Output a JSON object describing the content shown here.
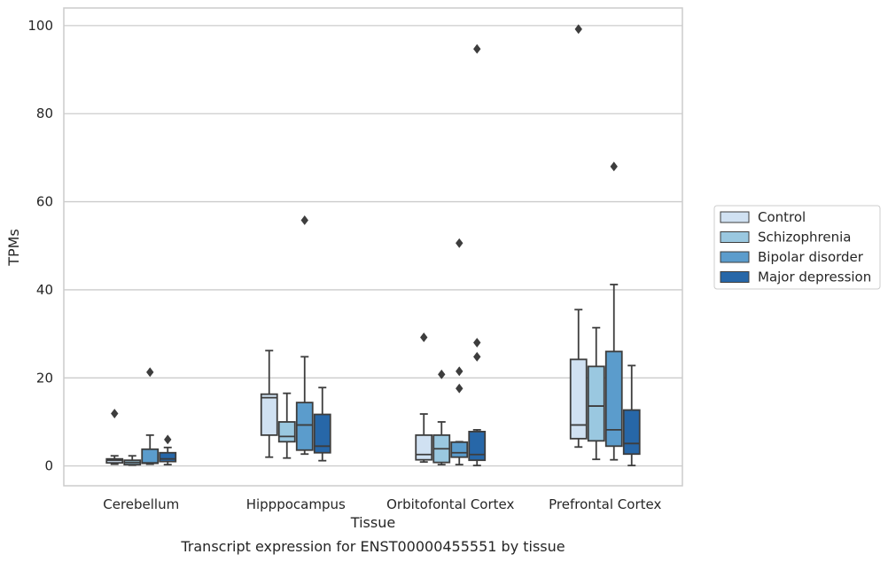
{
  "caption": "Transcript expression for ENST00000455551 by tissue",
  "chart_data": {
    "type": "box",
    "xlabel": "Tissue",
    "ylabel": "TPMs",
    "ylim": [
      -4.5,
      104
    ],
    "yticks": [
      0,
      20,
      40,
      60,
      80,
      100
    ],
    "grid": "horizontal",
    "legend_position": "outside-right",
    "categories": [
      "Cerebellum",
      "Hipppocampus",
      "Orbitofontal Cortex",
      "Prefrontal Cortex"
    ],
    "series": [
      {
        "name": "Control",
        "color": "#d0e1f2",
        "boxes": [
          {
            "whisker_low": 0.4,
            "q1": 0.7,
            "median": 1.3,
            "q3": 1.6,
            "whisker_high": 2.3,
            "outliers": [
              11.9
            ]
          },
          {
            "whisker_low": 2.0,
            "q1": 7.0,
            "median": 15.5,
            "q3": 16.3,
            "whisker_high": 26.2,
            "outliers": []
          },
          {
            "whisker_low": 0.9,
            "q1": 1.4,
            "median": 2.6,
            "q3": 7.0,
            "whisker_high": 11.8,
            "outliers": [
              29.2
            ]
          },
          {
            "whisker_low": 4.3,
            "q1": 6.2,
            "median": 9.3,
            "q3": 24.2,
            "whisker_high": 35.5,
            "outliers": [
              99.2
            ]
          }
        ]
      },
      {
        "name": "Schizophrenia",
        "color": "#9ac8e0",
        "boxes": [
          {
            "whisker_low": 0.2,
            "q1": 0.3,
            "median": 0.8,
            "q3": 1.3,
            "whisker_high": 2.3,
            "outliers": []
          },
          {
            "whisker_low": 1.8,
            "q1": 5.5,
            "median": 6.7,
            "q3": 10.0,
            "whisker_high": 16.5,
            "outliers": []
          },
          {
            "whisker_low": 0.3,
            "q1": 0.8,
            "median": 3.9,
            "q3": 7.0,
            "whisker_high": 10.0,
            "outliers": [
              20.8
            ]
          },
          {
            "whisker_low": 1.5,
            "q1": 5.7,
            "median": 13.6,
            "q3": 22.6,
            "whisker_high": 31.4,
            "outliers": []
          }
        ]
      },
      {
        "name": "Bipolar disorder",
        "color": "#5b9ccc",
        "boxes": [
          {
            "whisker_low": 0.4,
            "q1": 0.6,
            "median": 0.7,
            "q3": 3.8,
            "whisker_high": 7.0,
            "outliers": [
              21.3
            ]
          },
          {
            "whisker_low": 2.7,
            "q1": 3.6,
            "median": 9.3,
            "q3": 14.4,
            "whisker_high": 24.8,
            "outliers": [
              55.8
            ]
          },
          {
            "whisker_low": 0.3,
            "q1": 2.0,
            "median": 3.0,
            "q3": 5.4,
            "whisker_high": 5.5,
            "outliers": [
              50.6,
              21.5,
              17.6
            ]
          },
          {
            "whisker_low": 1.4,
            "q1": 4.5,
            "median": 8.2,
            "q3": 26.0,
            "whisker_high": 41.2,
            "outliers": [
              68.0
            ]
          }
        ]
      },
      {
        "name": "Major depression",
        "color": "#2767a8",
        "boxes": [
          {
            "whisker_low": 0.3,
            "q1": 1.0,
            "median": 1.6,
            "q3": 3.0,
            "whisker_high": 4.2,
            "outliers": [
              6.0
            ]
          },
          {
            "whisker_low": 1.2,
            "q1": 3.0,
            "median": 4.5,
            "q3": 11.7,
            "whisker_high": 17.8,
            "outliers": []
          },
          {
            "whisker_low": 0.1,
            "q1": 1.3,
            "median": 2.6,
            "q3": 7.8,
            "whisker_high": 8.2,
            "outliers": [
              94.7,
              28.0,
              24.8
            ]
          },
          {
            "whisker_low": 0.1,
            "q1": 2.7,
            "median": 5.1,
            "q3": 12.7,
            "whisker_high": 22.8,
            "outliers": []
          }
        ]
      }
    ]
  }
}
